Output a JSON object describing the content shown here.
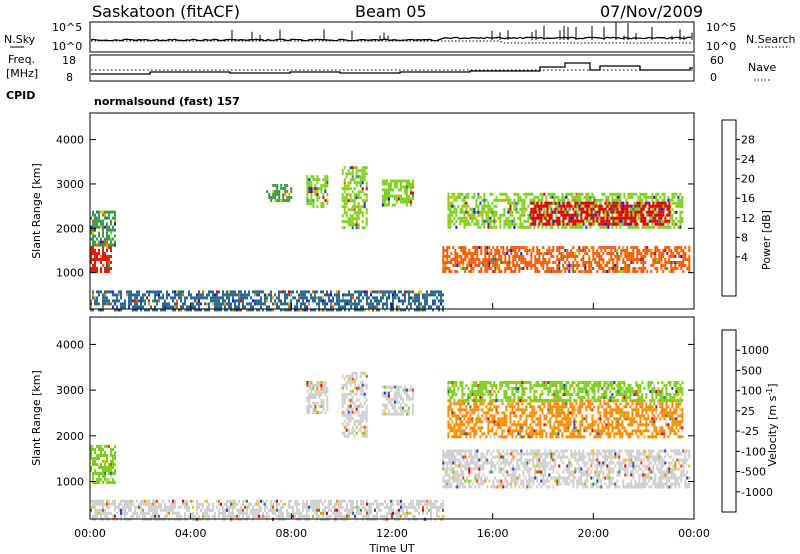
{
  "header": {
    "station": "Saskatoon (fitACF)",
    "beam": "Beam 05",
    "date": "07/Nov/2009"
  },
  "top_panels": {
    "nsky_label": "N.Sky",
    "nsky_ticks": [
      "10^5",
      "10^0"
    ],
    "nsearch_label": "N.Search",
    "freq_label_1": "Freq.",
    "freq_label_2": "[MHz]",
    "freq_ticks": [
      "18",
      "8"
    ],
    "nave_ticks": [
      "60",
      "0"
    ],
    "nave_label": "Nave",
    "cpid_label": "CPID",
    "cpid_value": "normalsound (fast) 157"
  },
  "chart_data": [
    {
      "type": "heatmap",
      "name": "power",
      "ylabel": "Slant Range [km]",
      "ylim": [
        180,
        4600
      ],
      "yticks": [
        1000,
        2000,
        3000,
        4000
      ],
      "x_unit": "hours UT",
      "xlim": [
        0,
        24
      ],
      "colorbar": {
        "label": "Power [dB]",
        "ticks": [
          "28",
          "24",
          "20",
          "16",
          "12",
          "8",
          "4"
        ],
        "colors": [
          "#e00000",
          "#ff5a00",
          "#ff9a00",
          "#f0c000",
          "#7ed020",
          "#3a9a4a",
          "#2a6a90",
          "#2030c0",
          "#1010ff"
        ]
      },
      "regions": [
        {
          "t": [
            0.0,
            0.8
          ],
          "r": [
            1000,
            1600
          ],
          "color": "#e02000"
        },
        {
          "t": [
            0.0,
            1.0
          ],
          "r": [
            1600,
            2400
          ],
          "color": "#3a9a4a"
        },
        {
          "t": [
            0.0,
            14.0
          ],
          "r": [
            180,
            600
          ],
          "color": "#2a6a90"
        },
        {
          "t": [
            7.0,
            8.0
          ],
          "r": [
            2600,
            3000
          ],
          "color": "#3a9a4a"
        },
        {
          "t": [
            8.6,
            9.4
          ],
          "r": [
            2500,
            3200
          ],
          "color": "#7ed020"
        },
        {
          "t": [
            10.0,
            11.0
          ],
          "r": [
            2000,
            3400
          ],
          "color": "#7ed020"
        },
        {
          "t": [
            11.6,
            12.8
          ],
          "r": [
            2500,
            3100
          ],
          "color": "#7ed020"
        },
        {
          "t": [
            14.0,
            23.8
          ],
          "r": [
            1000,
            1600
          ],
          "color": "#ff5a00"
        },
        {
          "t": [
            14.2,
            23.5
          ],
          "r": [
            2000,
            2800
          ],
          "color": "#7ed020"
        },
        {
          "t": [
            17.5,
            23.0
          ],
          "r": [
            2100,
            2600
          ],
          "color": "#e00000"
        }
      ]
    },
    {
      "type": "heatmap",
      "name": "velocity",
      "ylabel": "Slant Range [km]",
      "ylim": [
        180,
        4600
      ],
      "yticks": [
        1000,
        2000,
        3000,
        4000
      ],
      "xlabel": "Time UT",
      "x_unit": "hours UT",
      "xlim": [
        0,
        24
      ],
      "xticks": [
        "00:00",
        "04:00",
        "08:00",
        "12:00",
        "16:00",
        "20:00",
        "00:00"
      ],
      "colorbar": {
        "label": "Velocity [m s^-1]",
        "ticks": [
          "1000",
          "500",
          "100",
          "25",
          "-25",
          "-100",
          "-500",
          "-1000"
        ],
        "colors": [
          "#2040c0",
          "#2f8a4a",
          "#7ed020",
          "#cfcfcf",
          "#cfcfcf",
          "#f0c000",
          "#ff8a00",
          "#ff4000",
          "#e00000"
        ]
      },
      "regions": [
        {
          "t": [
            0.0,
            1.0
          ],
          "r": [
            1000,
            1800
          ],
          "color": "#7ed020"
        },
        {
          "t": [
            0.0,
            14.0
          ],
          "r": [
            180,
            600
          ],
          "color": "#cfcfcf"
        },
        {
          "t": [
            8.6,
            9.4
          ],
          "r": [
            2500,
            3200
          ],
          "color": "#cfcfcf"
        },
        {
          "t": [
            10.0,
            11.0
          ],
          "r": [
            2000,
            3400
          ],
          "color": "#cfcfcf"
        },
        {
          "t": [
            11.6,
            12.8
          ],
          "r": [
            2500,
            3100
          ],
          "color": "#cfcfcf"
        },
        {
          "t": [
            14.0,
            23.8
          ],
          "r": [
            900,
            1700
          ],
          "color": "#cfcfcf"
        },
        {
          "t": [
            14.2,
            23.5
          ],
          "r": [
            2000,
            2800
          ],
          "color": "#ff8a00"
        },
        {
          "t": [
            14.2,
            23.5
          ],
          "r": [
            2800,
            3200
          ],
          "color": "#7ed020"
        }
      ]
    }
  ]
}
